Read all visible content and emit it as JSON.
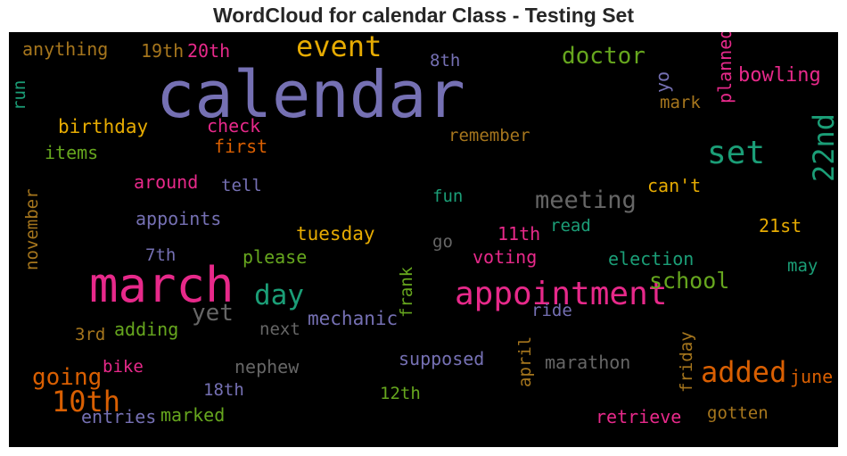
{
  "chart_data": {
    "type": "wordcloud",
    "title": "WordCloud for calendar Class - Testing Set",
    "palette": [
      "#7570b3",
      "#e7298a",
      "#1b9e77",
      "#d95f02",
      "#e6ab02",
      "#66a61e",
      "#a6761d",
      "#666666"
    ],
    "words": [
      {
        "text": "calendar",
        "weight": 1.0,
        "color": "#7570b3",
        "rotated": false
      },
      {
        "text": "march",
        "weight": 0.75,
        "color": "#e7298a",
        "rotated": false
      },
      {
        "text": "appointment",
        "weight": 0.5,
        "color": "#e7298a",
        "rotated": false
      },
      {
        "text": "set",
        "weight": 0.5,
        "color": "#1b9e77",
        "rotated": false
      },
      {
        "text": "event",
        "weight": 0.45,
        "color": "#e6ab02",
        "rotated": false
      },
      {
        "text": "22nd",
        "weight": 0.45,
        "color": "#1b9e77",
        "rotated": true
      },
      {
        "text": "10th",
        "weight": 0.45,
        "color": "#d95f02",
        "rotated": false
      },
      {
        "text": "added",
        "weight": 0.45,
        "color": "#d95f02",
        "rotated": false
      },
      {
        "text": "day",
        "weight": 0.43,
        "color": "#1b9e77",
        "rotated": false
      },
      {
        "text": "meeting",
        "weight": 0.38,
        "color": "#666666",
        "rotated": false
      },
      {
        "text": "doctor",
        "weight": 0.36,
        "color": "#66a61e",
        "rotated": false
      },
      {
        "text": "going",
        "weight": 0.36,
        "color": "#d95f02",
        "rotated": false
      },
      {
        "text": "yet",
        "weight": 0.36,
        "color": "#666666",
        "rotated": false
      },
      {
        "text": "school",
        "weight": 0.35,
        "color": "#66a61e",
        "rotated": false
      },
      {
        "text": "bowling",
        "weight": 0.3,
        "color": "#e7298a",
        "rotated": false
      },
      {
        "text": "birthday",
        "weight": 0.29,
        "color": "#e6ab02",
        "rotated": false
      },
      {
        "text": "planned",
        "weight": 0.28,
        "color": "#e7298a",
        "rotated": true
      },
      {
        "text": "anything",
        "weight": 0.28,
        "color": "#a6761d",
        "rotated": false
      },
      {
        "text": "19th",
        "weight": 0.28,
        "color": "#a6761d",
        "rotated": false
      },
      {
        "text": "20th",
        "weight": 0.28,
        "color": "#e7298a",
        "rotated": false
      },
      {
        "text": "8th",
        "weight": 0.27,
        "color": "#7570b3",
        "rotated": false
      },
      {
        "text": "yo",
        "weight": 0.28,
        "color": "#7570b3",
        "rotated": true
      },
      {
        "text": "mark",
        "weight": 0.27,
        "color": "#a6761d",
        "rotated": false
      },
      {
        "text": "run",
        "weight": 0.27,
        "color": "#1b9e77",
        "rotated": true
      },
      {
        "text": "check",
        "weight": 0.28,
        "color": "#e7298a",
        "rotated": false
      },
      {
        "text": "first",
        "weight": 0.28,
        "color": "#d95f02",
        "rotated": false
      },
      {
        "text": "remember",
        "weight": 0.27,
        "color": "#a6761d",
        "rotated": false
      },
      {
        "text": "items",
        "weight": 0.28,
        "color": "#66a61e",
        "rotated": false
      },
      {
        "text": "around",
        "weight": 0.28,
        "color": "#e7298a",
        "rotated": false
      },
      {
        "text": "tell",
        "weight": 0.27,
        "color": "#7570b3",
        "rotated": false
      },
      {
        "text": "can't",
        "weight": 0.28,
        "color": "#e6ab02",
        "rotated": false
      },
      {
        "text": "fun",
        "weight": 0.27,
        "color": "#1b9e77",
        "rotated": false
      },
      {
        "text": "november",
        "weight": 0.27,
        "color": "#a6761d",
        "rotated": true
      },
      {
        "text": "appoints",
        "weight": 0.28,
        "color": "#7570b3",
        "rotated": false
      },
      {
        "text": "read",
        "weight": 0.27,
        "color": "#1b9e77",
        "rotated": false
      },
      {
        "text": "tuesday",
        "weight": 0.29,
        "color": "#e6ab02",
        "rotated": false
      },
      {
        "text": "go",
        "weight": 0.27,
        "color": "#666666",
        "rotated": false
      },
      {
        "text": "11th",
        "weight": 0.28,
        "color": "#e7298a",
        "rotated": false
      },
      {
        "text": "21st",
        "weight": 0.28,
        "color": "#e6ab02",
        "rotated": false
      },
      {
        "text": "7th",
        "weight": 0.27,
        "color": "#7570b3",
        "rotated": false
      },
      {
        "text": "please",
        "weight": 0.28,
        "color": "#66a61e",
        "rotated": false
      },
      {
        "text": "frank",
        "weight": 0.27,
        "color": "#66a61e",
        "rotated": true
      },
      {
        "text": "voting",
        "weight": 0.28,
        "color": "#e7298a",
        "rotated": false
      },
      {
        "text": "election",
        "weight": 0.28,
        "color": "#1b9e77",
        "rotated": false
      },
      {
        "text": "may",
        "weight": 0.27,
        "color": "#1b9e77",
        "rotated": false
      },
      {
        "text": "ride",
        "weight": 0.27,
        "color": "#7570b3",
        "rotated": false
      },
      {
        "text": "mechanic",
        "weight": 0.29,
        "color": "#7570b3",
        "rotated": false
      },
      {
        "text": "3rd",
        "weight": 0.27,
        "color": "#a6761d",
        "rotated": false
      },
      {
        "text": "adding",
        "weight": 0.28,
        "color": "#66a61e",
        "rotated": false
      },
      {
        "text": "next",
        "weight": 0.27,
        "color": "#666666",
        "rotated": false
      },
      {
        "text": "friday",
        "weight": 0.27,
        "color": "#a6761d",
        "rotated": true
      },
      {
        "text": "supposed",
        "weight": 0.28,
        "color": "#7570b3",
        "rotated": false
      },
      {
        "text": "april",
        "weight": 0.27,
        "color": "#a6761d",
        "rotated": true
      },
      {
        "text": "marathon",
        "weight": 0.28,
        "color": "#666666",
        "rotated": false
      },
      {
        "text": "bike",
        "weight": 0.27,
        "color": "#e7298a",
        "rotated": false
      },
      {
        "text": "nephew",
        "weight": 0.28,
        "color": "#666666",
        "rotated": false
      },
      {
        "text": "june",
        "weight": 0.28,
        "color": "#d95f02",
        "rotated": false
      },
      {
        "text": "18th",
        "weight": 0.27,
        "color": "#7570b3",
        "rotated": false
      },
      {
        "text": "12th",
        "weight": 0.27,
        "color": "#66a61e",
        "rotated": false
      },
      {
        "text": "entries",
        "weight": 0.28,
        "color": "#7570b3",
        "rotated": false
      },
      {
        "text": "marked",
        "weight": 0.28,
        "color": "#66a61e",
        "rotated": false
      },
      {
        "text": "retrieve",
        "weight": 0.28,
        "color": "#e7298a",
        "rotated": false
      },
      {
        "text": "gotten",
        "weight": 0.27,
        "color": "#a6761d",
        "rotated": false
      }
    ]
  }
}
